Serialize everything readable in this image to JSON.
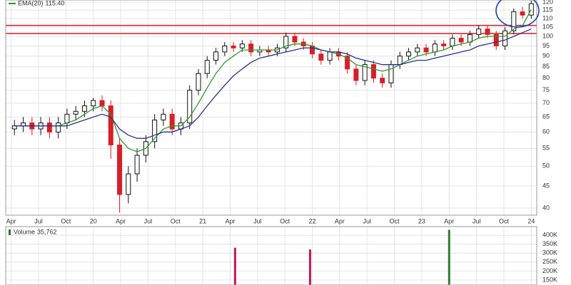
{
  "chart_data": [
    {
      "type": "candlestick",
      "x": [
        2019.28,
        2019.36,
        2019.44,
        2019.52,
        2019.6,
        2019.68,
        2019.76,
        2019.84,
        2019.92,
        2020.0,
        2020.08,
        2020.16,
        2020.24,
        2020.32,
        2020.4,
        2020.48,
        2020.56,
        2020.64,
        2020.72,
        2020.8,
        2020.88,
        2020.96,
        2021.04,
        2021.12,
        2021.2,
        2021.28,
        2021.36,
        2021.44,
        2021.52,
        2021.6,
        2021.68,
        2021.76,
        2021.84,
        2021.92,
        2022.0,
        2022.08,
        2022.16,
        2022.24,
        2022.32,
        2022.4,
        2022.48,
        2022.56,
        2022.64,
        2022.72,
        2022.8,
        2022.88,
        2022.96,
        2023.04,
        2023.12,
        2023.2,
        2023.28,
        2023.36,
        2023.44,
        2023.52,
        2023.6,
        2023.68,
        2023.76,
        2023.84,
        2023.92,
        2024.0
      ],
      "open": [
        61,
        62,
        63,
        61,
        63,
        60,
        63,
        66,
        67,
        69,
        71,
        69,
        56,
        43,
        48,
        53,
        57,
        64,
        66,
        61,
        63,
        75,
        82,
        88,
        92,
        95,
        94,
        96,
        92,
        93,
        92,
        94,
        100,
        97,
        95,
        91,
        88,
        92,
        90,
        84,
        79,
        86,
        80,
        78,
        86,
        90,
        92,
        94,
        92,
        96,
        95,
        99,
        97,
        101,
        104,
        101,
        95,
        103,
        114,
        112
      ],
      "high": [
        64,
        65,
        65,
        65,
        65,
        65,
        68,
        69,
        71,
        72,
        73,
        71,
        58,
        50,
        55,
        59,
        66,
        68,
        68,
        65,
        77,
        84,
        90,
        94,
        97,
        97,
        98,
        98,
        95,
        95,
        96,
        102,
        102,
        99,
        97,
        93,
        94,
        94,
        92,
        86,
        88,
        88,
        82,
        88,
        92,
        94,
        96,
        96,
        98,
        98,
        101,
        101,
        103,
        106,
        106,
        103,
        105,
        116,
        117,
        121
      ],
      "low": [
        59,
        60,
        59,
        59,
        58,
        58,
        61,
        64,
        65,
        67,
        67,
        52,
        39,
        41,
        46,
        51,
        55,
        62,
        59,
        59,
        61,
        73,
        80,
        86,
        90,
        92,
        92,
        90,
        90,
        90,
        90,
        92,
        95,
        93,
        89,
        86,
        86,
        88,
        82,
        77,
        77,
        78,
        76,
        76,
        84,
        88,
        90,
        90,
        90,
        93,
        93,
        95,
        95,
        99,
        99,
        93,
        93,
        101,
        110,
        110
      ],
      "close": [
        62,
        63,
        61,
        63,
        60,
        63,
        66,
        67,
        69,
        71,
        69,
        56,
        43,
        48,
        53,
        57,
        64,
        66,
        61,
        63,
        75,
        82,
        88,
        92,
        95,
        94,
        96,
        92,
        93,
        92,
        94,
        100,
        97,
        95,
        91,
        88,
        92,
        90,
        84,
        79,
        86,
        80,
        78,
        86,
        90,
        92,
        94,
        92,
        96,
        95,
        99,
        97,
        101,
        104,
        101,
        95,
        103,
        114,
        112,
        119
      ],
      "up_color": "#111111",
      "down_color": "#d81f26",
      "lines": [
        {
          "name": "EMA(20)",
          "color": "#2e9b2e",
          "legend_value": {
            "value": 115.4,
            "label": "115.40"
          },
          "values": [
            62,
            62,
            62,
            62,
            62,
            62,
            63,
            64,
            66,
            68,
            69,
            66,
            58,
            55,
            54,
            55,
            58,
            61,
            62,
            62,
            65,
            70,
            76,
            82,
            87,
            90,
            93,
            93,
            93,
            93,
            93,
            95,
            96,
            96,
            95,
            93,
            92,
            91,
            89,
            86,
            85,
            84,
            83,
            84,
            86,
            88,
            90,
            91,
            92,
            93,
            95,
            96,
            97,
            99,
            100,
            100,
            100,
            104,
            106,
            115.4
          ]
        },
        {
          "color": "#2b2f8f",
          "values": [
            62,
            62,
            62,
            62,
            62,
            62,
            62,
            63,
            64,
            65,
            66,
            65,
            61,
            59,
            58,
            58,
            59,
            60,
            60,
            61,
            62,
            65,
            69,
            73,
            77,
            81,
            84,
            87,
            89,
            90,
            91,
            92,
            93,
            94,
            94,
            93,
            92,
            92,
            91,
            89,
            88,
            87,
            86,
            86,
            86,
            87,
            88,
            88,
            89,
            90,
            91,
            92,
            93,
            95,
            96,
            97,
            98,
            100,
            102,
            104
          ]
        }
      ],
      "levels": [
        {
          "value": 106,
          "color": "#e0282e"
        },
        {
          "value": 101.5,
          "color": "#e0282e"
        }
      ],
      "xlim": [
        2019.2,
        2024.05
      ],
      "xticks": [
        {
          "value": 2019.25,
          "label": "Apr"
        },
        {
          "value": 2019.5,
          "label": "Jul"
        },
        {
          "value": 2019.75,
          "label": "Oct"
        },
        {
          "value": 2020,
          "label": "20"
        },
        {
          "value": 2020.25,
          "label": "Apr"
        },
        {
          "value": 2020.5,
          "label": "Jul"
        },
        {
          "value": 2020.75,
          "label": "Oct"
        },
        {
          "value": 2021,
          "label": "21"
        },
        {
          "value": 2021.25,
          "label": "Apr"
        },
        {
          "value": 2021.5,
          "label": "Jul"
        },
        {
          "value": 2021.75,
          "label": "Oct"
        },
        {
          "value": 2022,
          "label": "22"
        },
        {
          "value": 2022.25,
          "label": "Apr"
        },
        {
          "value": 2022.5,
          "label": "Jul"
        },
        {
          "value": 2022.75,
          "label": "Oct"
        },
        {
          "value": 2023,
          "label": "23"
        },
        {
          "value": 2023.25,
          "label": "Apr"
        },
        {
          "value": 2023.5,
          "label": "Jul"
        },
        {
          "value": 2023.75,
          "label": "Oct"
        },
        {
          "value": 2024,
          "label": "24"
        }
      ],
      "ylim": [
        38.5,
        121.4
      ],
      "log": true,
      "yticks": [
        40,
        45,
        50,
        55,
        60,
        65,
        70,
        75,
        80,
        85,
        90,
        95,
        100,
        105,
        110,
        115,
        120
      ],
      "grid": true
    },
    {
      "type": "bar",
      "series_name": "Volume",
      "last_value": {
        "value": 35762,
        "label": "35,762"
      },
      "x": [
        2021.295,
        2021.98,
        2023.25
      ],
      "values": [
        330000,
        320000,
        430000
      ],
      "colors": [
        "#c2185b",
        "#c2185b",
        "#2e7d32"
      ],
      "ylim": [
        122000,
        448000
      ],
      "yticks": [
        {
          "value": 150000,
          "label": "150K"
        },
        {
          "value": 200000,
          "label": "200K"
        },
        {
          "value": 250000,
          "label": "250K"
        },
        {
          "value": 300000,
          "label": "300K"
        },
        {
          "value": 350000,
          "label": "350K"
        },
        {
          "value": 400000,
          "label": "400K"
        }
      ],
      "grid": true
    }
  ]
}
